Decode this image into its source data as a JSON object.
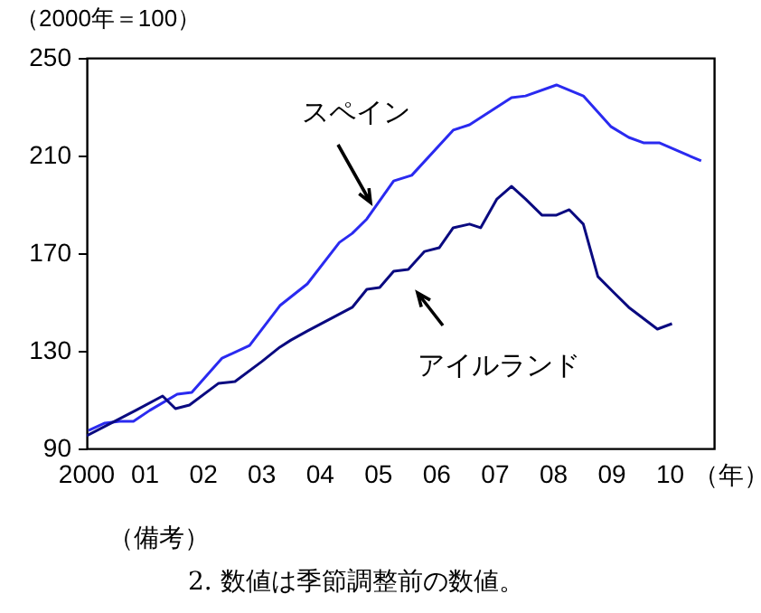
{
  "chart_data": {
    "type": "line",
    "ylabel": "（2000年＝100）",
    "xlabel": "（年）",
    "xlim": [
      2000,
      2010.75
    ],
    "ylim": [
      90,
      250
    ],
    "yticks": [
      90,
      130,
      170,
      210,
      250
    ],
    "xticks": [
      {
        "value": 2000,
        "label": "2000"
      },
      {
        "value": 2001,
        "label": "01"
      },
      {
        "value": 2002,
        "label": "02"
      },
      {
        "value": 2003,
        "label": "03"
      },
      {
        "value": 2004,
        "label": "04"
      },
      {
        "value": 2005,
        "label": "05"
      },
      {
        "value": 2006,
        "label": "06"
      },
      {
        "value": 2007,
        "label": "07"
      },
      {
        "value": 2008,
        "label": "08"
      },
      {
        "value": 2009,
        "label": "09"
      },
      {
        "value": 2010,
        "label": "10"
      }
    ],
    "grid": false,
    "marker": "none",
    "line_style": "solid",
    "series": [
      {
        "name": "スペイン",
        "color": "#2a2af0",
        "x": [
          2000.03,
          2000.31,
          2000.56,
          2000.8,
          2001.08,
          2001.55,
          2001.8,
          2002.32,
          2002.79,
          2003.31,
          2003.78,
          2004.33,
          2004.55,
          2004.8,
          2005.26,
          2005.57,
          2006.28,
          2006.56,
          2007.28,
          2007.52,
          2008.05,
          2008.51,
          2008.98,
          2009.29,
          2009.54,
          2009.81,
          2010.53
        ],
        "values": [
          97.4,
          100.4,
          101.1,
          101.1,
          105.6,
          112.2,
          113,
          127,
          132.2,
          148.5,
          157.4,
          174.4,
          178.1,
          184,
          199.6,
          201.9,
          220.4,
          222.6,
          233.7,
          234.4,
          238.9,
          234.4,
          221.9,
          217.4,
          215.2,
          215.2,
          207.8
        ]
      },
      {
        "name": "アイルランド",
        "color": "#0a0a80",
        "x": [
          2000,
          2000.84,
          2001.3,
          2001.52,
          2001.76,
          2002.26,
          2002.54,
          2003,
          2003.31,
          2003.5,
          2003.78,
          2004.55,
          2004.8,
          2005.02,
          2005.26,
          2005.51,
          2005.79,
          2006.04,
          2006.28,
          2006.56,
          2006.75,
          2007.03,
          2007.28,
          2007.52,
          2007.8,
          2008.05,
          2008.27,
          2008.51,
          2008.76,
          2009.04,
          2009.29,
          2009.78,
          2010.03
        ],
        "values": [
          95.2,
          105.6,
          111.5,
          106.3,
          107.8,
          116.7,
          117.4,
          125.6,
          131.5,
          134.4,
          138.1,
          147.8,
          155.2,
          155.9,
          162.6,
          163.3,
          170.7,
          172.2,
          180.4,
          181.9,
          180.4,
          192.2,
          197.4,
          192.2,
          185.6,
          185.6,
          187.8,
          181.9,
          160.4,
          153.7,
          147.8,
          138.9,
          141.1
        ]
      }
    ],
    "annotations": [
      "（備考）",
      "2. 数値は季節調整前の数値。"
    ]
  }
}
